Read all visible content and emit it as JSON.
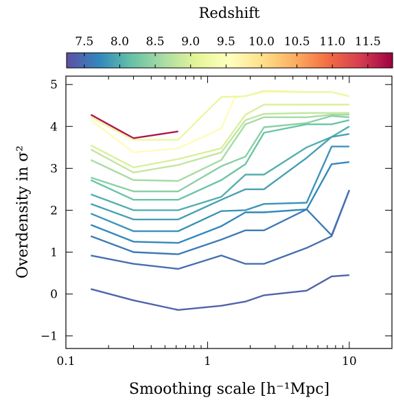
{
  "chart_data": {
    "type": "line",
    "xlabel": "Smoothing scale [h⁻¹Mpc]",
    "ylabel": "Overdensity in σ²",
    "x_scale": "log",
    "xlim": [
      0.1,
      20
    ],
    "ylim": [
      -1.3,
      5.2
    ],
    "x_ticks": [
      0.1,
      1,
      10
    ],
    "x_tick_labels": [
      "0.1",
      "1",
      "10"
    ],
    "y_ticks": [
      -1,
      0,
      1,
      2,
      3,
      4,
      5
    ],
    "y_tick_labels": [
      "−1",
      "0",
      "1",
      "2",
      "3",
      "4",
      "5"
    ],
    "colorbar": {
      "title": "Redshift",
      "range": [
        7.25,
        11.85
      ],
      "ticks": [
        7.5,
        8.0,
        8.5,
        9.0,
        9.5,
        10.0,
        10.5,
        11.0,
        11.5
      ],
      "tick_labels": [
        "7.5",
        "8.0",
        "8.5",
        "9.0",
        "9.5",
        "10.0",
        "10.5",
        "11.0",
        "11.5"
      ],
      "colormap": [
        "#5e4fa2",
        "#3288bd",
        "#66c2a5",
        "#abdda4",
        "#e6f598",
        "#ffffbf",
        "#fee08b",
        "#fdae61",
        "#f46d43",
        "#d53e4f",
        "#9e0142"
      ]
    },
    "series": [
      {
        "z": 11.7,
        "x": [
          0.15,
          0.3,
          0.62
        ],
        "y": [
          4.28,
          3.72,
          3.88
        ]
      },
      {
        "z": 9.6,
        "x": [
          0.15,
          0.3,
          0.62,
          1.25,
          1.55,
          2.5,
          5.0
        ],
        "y": [
          4.15,
          3.38,
          3.48,
          3.95,
          4.68,
          4.82,
          4.82
        ]
      },
      {
        "z": 9.2,
        "x": [
          0.15,
          0.3,
          0.62,
          1.25,
          1.85,
          2.5,
          5.0,
          7.5,
          10.0
        ],
        "y": [
          4.22,
          3.68,
          3.68,
          4.7,
          4.72,
          4.85,
          4.82,
          4.82,
          4.72
        ]
      },
      {
        "z": 9.0,
        "x": [
          0.15,
          0.3,
          0.62,
          1.25,
          1.85,
          2.5,
          5.0,
          7.5,
          10.0
        ],
        "y": [
          3.55,
          3.02,
          3.22,
          3.48,
          4.28,
          4.52,
          4.52,
          4.52,
          4.52
        ]
      },
      {
        "z": 8.8,
        "x": [
          0.15,
          0.3,
          0.62,
          1.25,
          1.85,
          2.5,
          5.0,
          7.5,
          10.0
        ],
        "y": [
          3.45,
          2.9,
          3.08,
          3.38,
          4.15,
          4.3,
          4.32,
          4.32,
          4.32
        ]
      },
      {
        "z": 8.6,
        "x": [
          0.15,
          0.3,
          0.62,
          1.25,
          1.85,
          2.5,
          5.0,
          7.5,
          10.0
        ],
        "y": [
          3.2,
          2.72,
          2.7,
          3.2,
          4.05,
          4.22,
          4.22,
          4.28,
          4.28
        ]
      },
      {
        "z": 8.4,
        "x": [
          0.15,
          0.3,
          0.62,
          1.25,
          1.85,
          2.5,
          5.0,
          7.5,
          10.0
        ],
        "y": [
          2.78,
          2.45,
          2.45,
          3.05,
          3.28,
          3.98,
          4.08,
          4.25,
          4.22
        ]
      },
      {
        "z": 8.2,
        "x": [
          0.15,
          0.3,
          0.62,
          1.25,
          1.85,
          2.5,
          5.0,
          7.5,
          10.0
        ],
        "y": [
          2.72,
          2.25,
          2.25,
          2.72,
          3.1,
          3.85,
          4.05,
          4.05,
          4.15
        ]
      },
      {
        "z": 8.0,
        "x": [
          0.15,
          0.3,
          0.62,
          1.25,
          1.85,
          2.5,
          5.0,
          7.5,
          10.0
        ],
        "y": [
          2.38,
          2.0,
          2.0,
          2.32,
          2.85,
          2.85,
          3.5,
          3.75,
          4.0
        ]
      },
      {
        "z": 7.9,
        "x": [
          0.15,
          0.3,
          0.62,
          1.25,
          1.85,
          2.5,
          5.0,
          7.5,
          10.0
        ],
        "y": [
          2.15,
          1.78,
          1.78,
          2.25,
          2.5,
          2.5,
          3.25,
          3.75,
          3.82
        ]
      },
      {
        "z": 7.8,
        "x": [
          0.15,
          0.3,
          0.62,
          1.25,
          1.85,
          2.5,
          5.0,
          7.5,
          10.0
        ],
        "y": [
          1.92,
          1.5,
          1.5,
          1.98,
          2.0,
          2.15,
          2.18,
          3.52,
          3.52
        ]
      },
      {
        "z": 7.7,
        "x": [
          0.15,
          0.3,
          0.62,
          1.25,
          1.85,
          2.5,
          5.0,
          7.5,
          10.0
        ],
        "y": [
          1.65,
          1.25,
          1.22,
          1.62,
          1.95,
          1.95,
          2.02,
          3.1,
          3.15
        ]
      },
      {
        "z": 7.6,
        "x": [
          0.15,
          0.3,
          0.62,
          1.25,
          1.85,
          2.5,
          5.0,
          7.5,
          10.0
        ],
        "y": [
          1.38,
          1.0,
          0.95,
          1.3,
          1.52,
          1.52,
          2.02,
          1.4,
          2.48
        ]
      },
      {
        "z": 7.5,
        "x": [
          0.15,
          0.3,
          0.62,
          1.25,
          1.85,
          2.5,
          5.0,
          7.5,
          10.0
        ],
        "y": [
          0.92,
          0.72,
          0.6,
          0.92,
          0.72,
          0.72,
          1.1,
          1.38,
          2.48
        ]
      },
      {
        "z": 7.4,
        "x": [
          0.15,
          0.3,
          0.62,
          1.25,
          1.85,
          2.5,
          5.0,
          7.5,
          10.0
        ],
        "y": [
          0.12,
          -0.15,
          -0.38,
          -0.28,
          -0.18,
          -0.03,
          0.08,
          0.42,
          0.45
        ]
      }
    ]
  }
}
